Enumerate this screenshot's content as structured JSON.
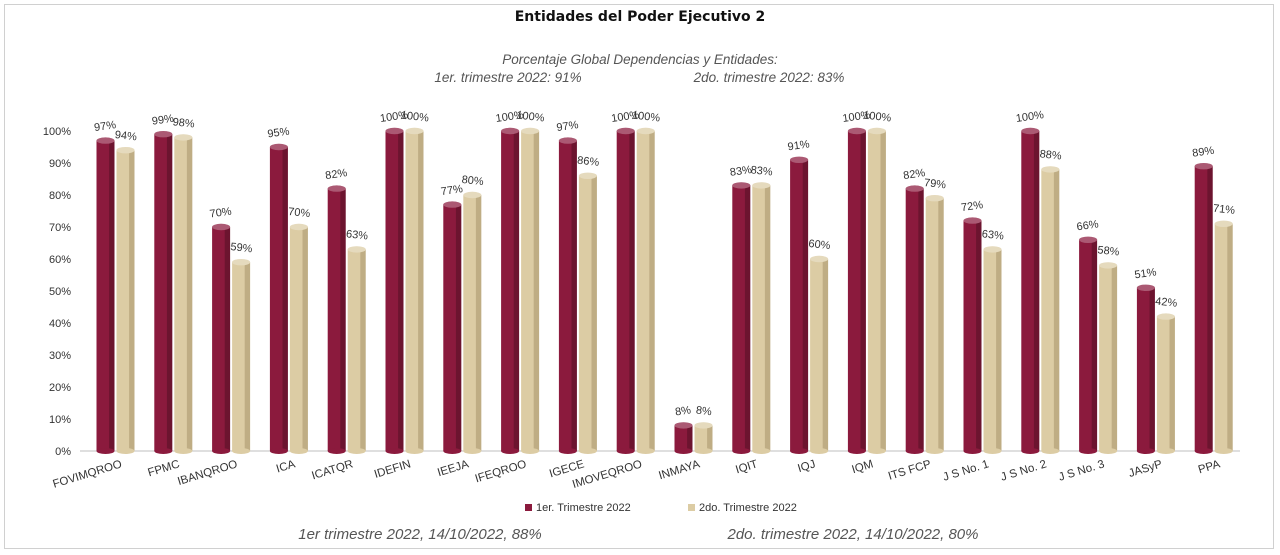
{
  "chart_data": {
    "type": "bar",
    "title": "Entidades del Poder Ejecutivo 2",
    "subtitle_lines": [
      "Porcentaje Global  Dependencias y Entidades:",
      "1er. trimestre 2022: 91%",
      "2do. trimestre 2022: 83%"
    ],
    "footer_left": "1er trimestre  2022,  14/10/2022, 88%",
    "footer_right": "2do. trimestre 2022, 14/10/2022, 80%",
    "categories": [
      "FOVIMQROO",
      "FPMC",
      "IBANQROO",
      "ICA",
      "ICATQR",
      "IDEFIN",
      "IEEJA",
      "IFEQROO",
      "IGECE",
      "IMOVEQROO",
      "INMAYA",
      "IQIT",
      "IQJ",
      "IQM",
      "ITS FCP",
      "J S No. 1",
      "J S No. 2",
      "J S No. 3",
      "JASyP",
      "PPA"
    ],
    "series": [
      {
        "name": "1er. Trimestre 2022",
        "color": "#8B1A3D",
        "values": [
          97,
          99,
          70,
          95,
          82,
          100,
          77,
          100,
          97,
          100,
          8,
          83,
          91,
          100,
          82,
          72,
          100,
          66,
          51,
          89
        ],
        "labels": [
          "97%",
          "99%",
          "70%",
          "95%",
          "82%",
          "100%",
          "77%",
          "100%",
          "97%",
          "100%",
          "8%",
          "83%",
          "91%",
          "100%",
          "82%",
          "72%",
          "100%",
          "66%",
          "51%",
          "89%"
        ]
      },
      {
        "name": "2do. Trimestre 2022",
        "color": "#DCCCA4",
        "values": [
          94,
          98,
          59,
          70,
          63,
          100,
          80,
          100,
          86,
          100,
          8,
          83,
          60,
          100,
          79,
          63,
          88,
          58,
          42,
          71
        ],
        "labels": [
          "94%",
          "98%",
          "59%",
          "70%",
          "63%",
          "100%",
          "80%",
          "100%",
          "86%",
          "100%",
          "8%",
          "83%",
          "60%",
          "100%",
          "79%",
          "63%",
          "88%",
          "58%",
          "42%",
          "71%"
        ]
      }
    ],
    "yticks": [
      "0%",
      "10%",
      "20%",
      "30%",
      "40%",
      "50%",
      "60%",
      "70%",
      "80%",
      "90%",
      "100%"
    ],
    "ylim": [
      0,
      100
    ],
    "legend_position": "bottom"
  }
}
